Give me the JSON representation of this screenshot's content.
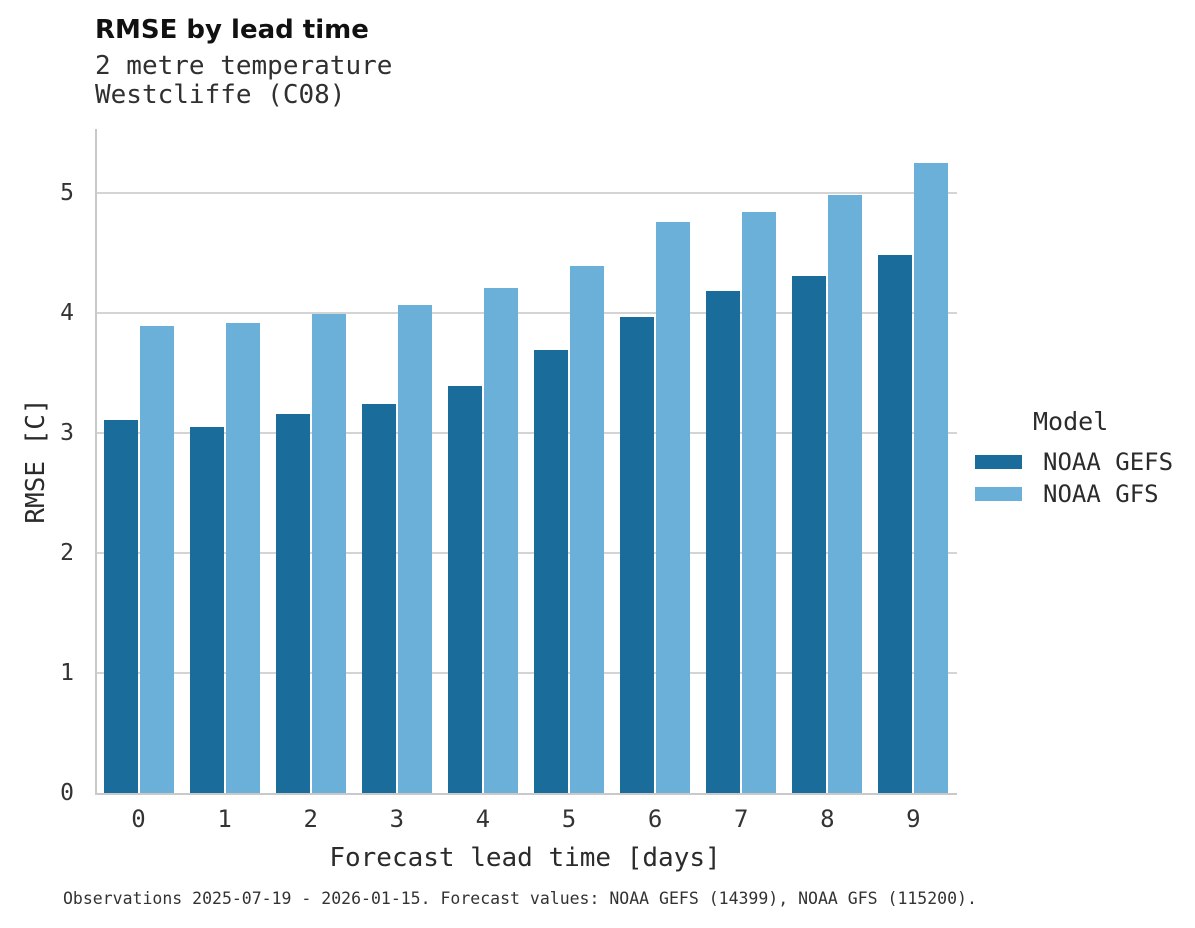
{
  "header": {
    "title": "RMSE by lead time",
    "subtitle1": "2 metre temperature",
    "subtitle2": "Westcliffe (C08)"
  },
  "chart_data": {
    "type": "bar",
    "title": "RMSE by lead time",
    "subtitle": [
      "2 metre temperature",
      "Westcliffe (C08)"
    ],
    "categories": [
      "0",
      "1",
      "2",
      "3",
      "4",
      "5",
      "6",
      "7",
      "8",
      "9"
    ],
    "series": [
      {
        "name": "NOAA GEFS",
        "color": "#1a6d9a",
        "values": [
          3.11,
          3.05,
          3.16,
          3.24,
          3.39,
          3.69,
          3.97,
          4.18,
          4.31,
          4.48
        ]
      },
      {
        "name": "NOAA GFS",
        "color": "#6bb0d8",
        "values": [
          3.89,
          3.92,
          3.99,
          4.07,
          4.21,
          4.39,
          4.76,
          4.84,
          4.98,
          5.25
        ]
      }
    ],
    "xlabel": "Forecast lead time [days]",
    "ylabel": "RMSE [C]",
    "ylim": [
      0,
      5.53
    ],
    "yticks": [
      0,
      1,
      2,
      3,
      4,
      5
    ],
    "grid": true,
    "legend_title": "Model",
    "legend_position": "right",
    "background": "#ffffff",
    "gridline_color": "#d4d4d4"
  },
  "legend": {
    "title": "Model",
    "items": [
      {
        "label": "NOAA GEFS",
        "color": "#1a6d9a"
      },
      {
        "label": "NOAA GFS",
        "color": "#6bb0d8"
      }
    ]
  },
  "caption": "Observations 2025-07-19 - 2026-01-15. Forecast values: NOAA GEFS (14399), NOAA GFS (115200)."
}
